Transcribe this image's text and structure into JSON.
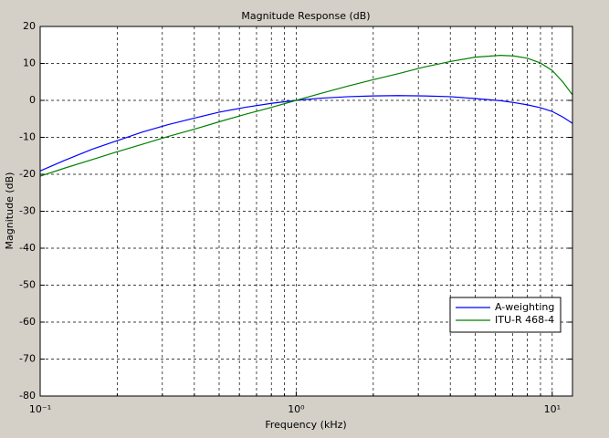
{
  "chart_data": {
    "type": "line",
    "title": "Magnitude Response (dB)",
    "x_label": "Frequency (kHz)",
    "y_label": "Magnitude (dB)",
    "x": [
      0.1,
      0.125,
      0.16,
      0.2,
      0.25,
      0.315,
      0.4,
      0.5,
      0.63,
      0.8,
      1,
      1.25,
      1.6,
      2,
      2.5,
      3.15,
      4,
      5,
      6.3,
      7.1,
      8,
      9,
      10,
      11,
      12
    ],
    "series": [
      {
        "name": "A-weighting",
        "color": "#0000ff",
        "values": [
          -19.1,
          -16.2,
          -13.2,
          -10.9,
          -8.6,
          -6.6,
          -4.8,
          -3.2,
          -1.9,
          -0.8,
          0,
          0.6,
          1.0,
          1.2,
          1.3,
          1.2,
          1.0,
          0.5,
          -0.1,
          -0.6,
          -1.2,
          -2.0,
          -3.0,
          -4.5,
          -6.2
        ]
      },
      {
        "name": "ITU-R 468-4",
        "color": "#008000",
        "values": [
          -20.5,
          -18.3,
          -16.0,
          -13.9,
          -11.9,
          -9.8,
          -7.8,
          -5.8,
          -3.8,
          -1.9,
          0,
          1.9,
          3.9,
          5.6,
          7.2,
          9.0,
          10.5,
          11.7,
          12.2,
          12.0,
          11.4,
          10.1,
          8.1,
          5.0,
          1.5
        ]
      }
    ],
    "x_scale": "log",
    "xlim": [
      0.1,
      12
    ],
    "ylim": [
      -80,
      20
    ],
    "xticks": [
      {
        "value": 0.1,
        "label": "10⁻¹"
      },
      {
        "value": 1,
        "label": "10⁰"
      },
      {
        "value": 10,
        "label": "10¹"
      }
    ],
    "xminorticks": [
      0.2,
      0.3,
      0.4,
      0.5,
      0.6,
      0.7,
      0.8,
      0.9,
      2,
      3,
      4,
      5,
      6,
      7,
      8,
      9
    ],
    "yticks": [
      -80,
      -70,
      -60,
      -50,
      -40,
      -30,
      -20,
      -10,
      0,
      10,
      20
    ],
    "grid": true,
    "legend": "lower-right"
  }
}
